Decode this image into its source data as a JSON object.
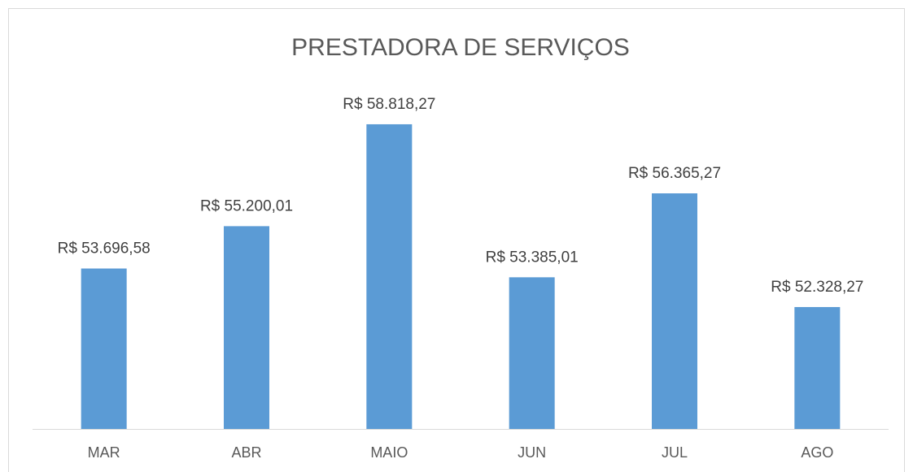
{
  "chart_data": {
    "type": "bar",
    "title": "PRESTADORA DE SERVIÇOS",
    "categories": [
      "MAR",
      "ABR",
      "MAIO",
      "JUN",
      "JUL",
      "AGO"
    ],
    "values": [
      53696.58,
      55200.01,
      58818.27,
      53385.01,
      56365.27,
      52328.27
    ],
    "value_labels": [
      "R$ 53.696,58",
      "R$ 55.200,01",
      "R$ 58.818,27",
      "R$ 53.385,01",
      "R$ 56.365,27",
      "R$ 52.328,27"
    ],
    "color": "#5b9bd5",
    "ylim": [
      48000,
      60000
    ]
  }
}
